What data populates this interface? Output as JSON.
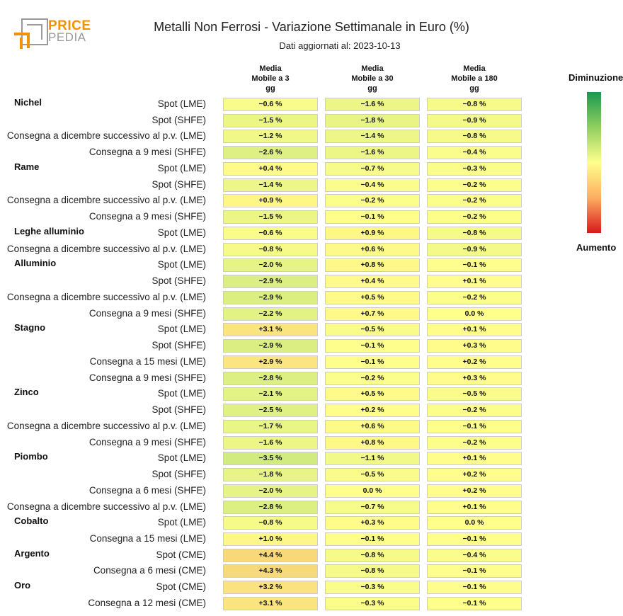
{
  "logo": {
    "line1": "PRICE",
    "line2": "PEDIA"
  },
  "chart_data": {
    "type": "table",
    "title": "Metalli Non Ferrosi - Variazione Settimanale in Euro (%)",
    "subtitle": "Dati aggiornati al: 2023-10-13",
    "columns": [
      "Media\nMobile a 3\ngg",
      "Media\nMobile a 30\ngg",
      "Media\nMobile a 180\ngg"
    ],
    "legend": {
      "top": "Diminuzione",
      "bottom": "Aumento"
    },
    "colors": {
      "decrease": "#1a9850",
      "neutral": "#ffff8c",
      "increase": "#d7191c"
    },
    "rows": [
      {
        "group": "Nichel",
        "label": "Spot (LME)",
        "values": [
          -0.6,
          -1.6,
          -0.8
        ]
      },
      {
        "group": "",
        "label": "Spot (SHFE)",
        "values": [
          -1.5,
          -1.8,
          -0.9
        ]
      },
      {
        "group": "",
        "label": "Consegna a dicembre successivo al p.v. (LME)",
        "values": [
          -1.2,
          -1.4,
          -0.8
        ]
      },
      {
        "group": "",
        "label": "Consegna a 9 mesi (SHFE)",
        "values": [
          -2.6,
          -1.6,
          -0.4
        ]
      },
      {
        "group": "Rame",
        "label": "Spot (LME)",
        "values": [
          0.4,
          -0.7,
          -0.3
        ]
      },
      {
        "group": "",
        "label": "Spot (SHFE)",
        "values": [
          -1.4,
          -0.4,
          -0.2
        ]
      },
      {
        "group": "",
        "label": "Consegna a dicembre successivo al p.v. (LME)",
        "values": [
          0.9,
          -0.2,
          -0.2
        ]
      },
      {
        "group": "",
        "label": "Consegna a 9 mesi (SHFE)",
        "values": [
          -1.5,
          -0.1,
          -0.2
        ]
      },
      {
        "group": "Leghe alluminio",
        "label": "Spot (LME)",
        "values": [
          -0.6,
          0.9,
          -0.8
        ]
      },
      {
        "group": "",
        "label": "Consegna a dicembre successivo al p.v. (LME)",
        "values": [
          -0.8,
          0.6,
          -0.9
        ]
      },
      {
        "group": "Alluminio",
        "label": "Spot (LME)",
        "values": [
          -2.0,
          0.8,
          -0.1
        ]
      },
      {
        "group": "",
        "label": "Spot (SHFE)",
        "values": [
          -2.9,
          0.4,
          0.1
        ]
      },
      {
        "group": "",
        "label": "Consegna a dicembre successivo al p.v. (LME)",
        "values": [
          -2.9,
          0.5,
          -0.2
        ]
      },
      {
        "group": "",
        "label": "Consegna a 9 mesi (SHFE)",
        "values": [
          -2.2,
          0.7,
          0.0
        ]
      },
      {
        "group": "Stagno",
        "label": "Spot (LME)",
        "values": [
          3.1,
          -0.5,
          0.1
        ]
      },
      {
        "group": "",
        "label": "Spot (SHFE)",
        "values": [
          -2.9,
          -0.1,
          0.3
        ]
      },
      {
        "group": "",
        "label": "Consegna a 15 mesi (LME)",
        "values": [
          2.9,
          -0.1,
          0.2
        ]
      },
      {
        "group": "",
        "label": "Consegna a 9 mesi (SHFE)",
        "values": [
          -2.8,
          -0.2,
          0.3
        ]
      },
      {
        "group": "Zinco",
        "label": "Spot (LME)",
        "values": [
          -2.1,
          0.5,
          -0.5
        ]
      },
      {
        "group": "",
        "label": "Spot (SHFE)",
        "values": [
          -2.5,
          0.2,
          -0.2
        ]
      },
      {
        "group": "",
        "label": "Consegna a dicembre successivo al p.v. (LME)",
        "values": [
          -1.7,
          0.6,
          -0.1
        ]
      },
      {
        "group": "",
        "label": "Consegna a 9 mesi (SHFE)",
        "values": [
          -1.6,
          0.8,
          -0.2
        ]
      },
      {
        "group": "Piombo",
        "label": "Spot (LME)",
        "values": [
          -3.5,
          -1.1,
          0.1
        ]
      },
      {
        "group": "",
        "label": "Spot (SHFE)",
        "values": [
          -1.8,
          -0.5,
          0.2
        ]
      },
      {
        "group": "",
        "label": "Consegna a 6 mesi (SHFE)",
        "values": [
          -2.0,
          0.0,
          0.2
        ]
      },
      {
        "group": "",
        "label": "Consegna a dicembre successivo al p.v. (LME)",
        "values": [
          -2.8,
          -0.7,
          0.1
        ]
      },
      {
        "group": "Cobalto",
        "label": "Spot (LME)",
        "values": [
          -0.8,
          0.3,
          0.0
        ]
      },
      {
        "group": "",
        "label": "Consegna a 15 mesi (LME)",
        "values": [
          1.0,
          -0.1,
          -0.1
        ]
      },
      {
        "group": "Argento",
        "label": "Spot (CME)",
        "values": [
          4.4,
          -0.8,
          -0.4
        ]
      },
      {
        "group": "",
        "label": "Consegna a 6 mesi (CME)",
        "values": [
          4.3,
          -0.8,
          -0.1
        ]
      },
      {
        "group": "Oro",
        "label": "Spot (CME)",
        "values": [
          3.2,
          -0.3,
          -0.1
        ]
      },
      {
        "group": "",
        "label": "Consegna a 12 mesi (CME)",
        "values": [
          3.1,
          -0.3,
          -0.1
        ]
      }
    ]
  }
}
